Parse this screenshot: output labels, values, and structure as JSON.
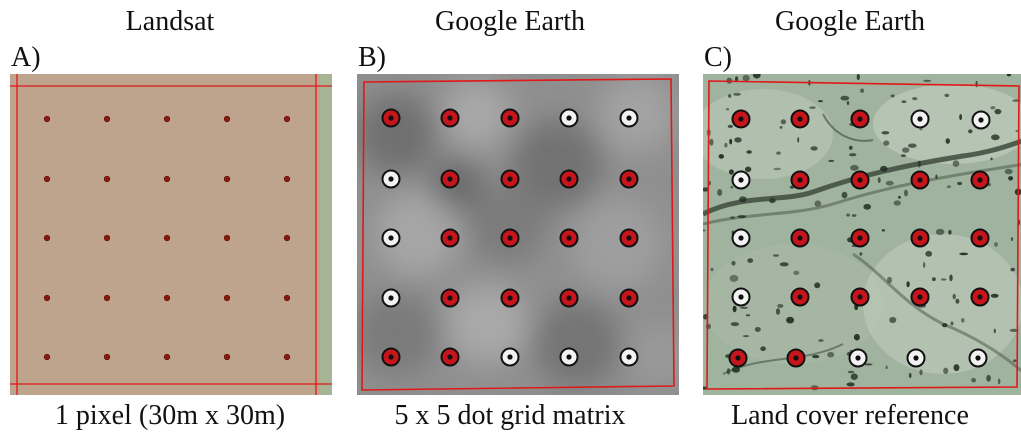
{
  "panels": [
    {
      "title": "Landsat",
      "label": "A)",
      "caption": "1 pixel (30m x 30m)",
      "rows": [
        [
          "point",
          "point",
          "point",
          "point",
          "point"
        ],
        [
          "point",
          "point",
          "point",
          "point",
          "point"
        ],
        [
          "point",
          "point",
          "point",
          "point",
          "point"
        ],
        [
          "point",
          "point",
          "point",
          "point",
          "point"
        ],
        [
          "point",
          "point",
          "point",
          "point",
          "point"
        ]
      ]
    },
    {
      "title": "Google Earth",
      "label": "B)",
      "caption": "5 x 5 dot grid matrix",
      "rows": [
        [
          "red",
          "red",
          "red",
          "white",
          "white"
        ],
        [
          "white",
          "red",
          "red",
          "red",
          "red"
        ],
        [
          "white",
          "red",
          "red",
          "red",
          "red"
        ],
        [
          "white",
          "red",
          "red",
          "red",
          "red"
        ],
        [
          "red",
          "red",
          "white",
          "white",
          "white"
        ]
      ]
    },
    {
      "title": "Google Earth",
      "label": "C)",
      "caption": "Land cover reference",
      "rows": [
        [
          "red",
          "red",
          "red",
          "white",
          "white"
        ],
        [
          "white",
          "red",
          "red",
          "red",
          "red"
        ],
        [
          "white",
          "red",
          "red",
          "red",
          "red"
        ],
        [
          "white",
          "red",
          "red",
          "red",
          "red"
        ],
        [
          "red",
          "red",
          "white",
          "white",
          "white"
        ]
      ]
    }
  ],
  "colors": {
    "landsat_fill": "#bea48c",
    "landsat_edge": "#a7b495",
    "outline_red": "#e01818",
    "dot_red": "#c8151b",
    "dot_white": "#f2f2f2"
  }
}
